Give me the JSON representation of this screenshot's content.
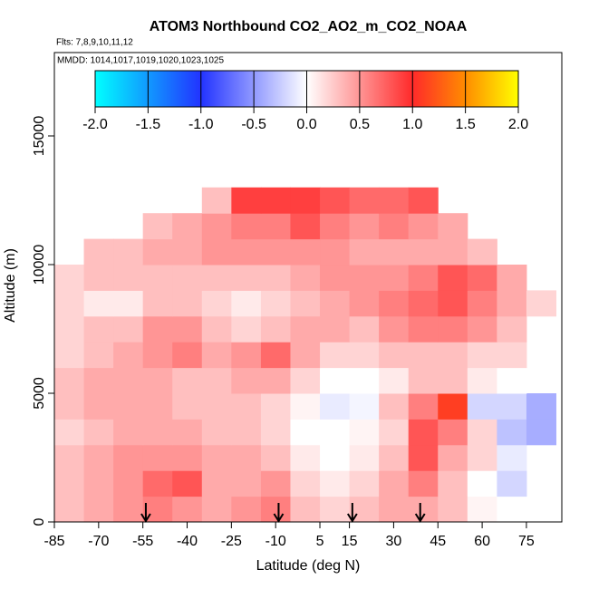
{
  "chart_data": {
    "type": "heatmap",
    "title": "ATOM3 Northbound CO2_AO2_m_CO2_NOAA",
    "subtitle": "Flts: 7,8,9,10,11,12",
    "annotation": "MMDD: 1014,1017,1019,1020,1023,1025",
    "x_label": "Latitude (deg N)",
    "y_label": "Altitude (m)",
    "x": [
      -80,
      -70,
      -60,
      -50,
      -40,
      -30,
      -20,
      -10,
      0,
      10,
      20,
      30,
      40,
      50,
      60,
      70,
      80
    ],
    "y": [
      500,
      1500,
      2500,
      3500,
      4500,
      5500,
      6500,
      7500,
      8500,
      9500,
      10500,
      11500,
      12500
    ],
    "values": [
      [
        0.3,
        0.4,
        0.5,
        0.6,
        0.5,
        0.4,
        0.5,
        0.6,
        0.3,
        0.2,
        0.3,
        0.4,
        0.4,
        0.3,
        0.05,
        0.0,
        0.0
      ],
      [
        0.3,
        0.4,
        0.5,
        0.7,
        0.8,
        0.4,
        0.4,
        0.5,
        0.2,
        0.1,
        0.2,
        0.4,
        0.6,
        0.3,
        0.0,
        -0.2,
        null
      ],
      [
        0.3,
        0.4,
        0.5,
        0.5,
        0.5,
        0.4,
        0.4,
        0.3,
        0.1,
        0.0,
        0.1,
        0.3,
        0.8,
        0.4,
        0.2,
        -0.1,
        null
      ],
      [
        0.2,
        0.3,
        0.4,
        0.4,
        0.4,
        0.3,
        0.3,
        0.2,
        0.0,
        0.0,
        0.05,
        0.2,
        0.8,
        0.6,
        0.2,
        -0.3,
        -0.4
      ],
      [
        0.3,
        0.4,
        0.4,
        0.4,
        0.3,
        0.3,
        0.3,
        0.2,
        0.05,
        -0.1,
        -0.05,
        0.3,
        0.6,
        1.1,
        -0.2,
        -0.2,
        -0.4
      ],
      [
        0.3,
        0.4,
        0.4,
        0.4,
        0.3,
        0.3,
        0.4,
        0.4,
        0.2,
        0.0,
        0.0,
        0.1,
        0.3,
        0.3,
        0.1,
        0.0,
        null
      ],
      [
        0.2,
        0.3,
        0.4,
        0.5,
        0.6,
        0.4,
        0.5,
        0.7,
        0.4,
        0.2,
        0.2,
        0.3,
        0.3,
        0.3,
        0.2,
        0.2,
        null
      ],
      [
        0.2,
        0.3,
        0.3,
        0.5,
        0.5,
        0.3,
        0.2,
        0.3,
        0.4,
        0.4,
        0.3,
        0.5,
        0.6,
        0.6,
        0.5,
        0.3,
        null
      ],
      [
        0.2,
        0.1,
        0.1,
        0.3,
        0.3,
        0.2,
        0.1,
        0.2,
        0.3,
        0.4,
        0.5,
        0.6,
        0.7,
        0.8,
        0.6,
        0.4,
        0.2
      ],
      [
        0.2,
        0.3,
        0.3,
        0.3,
        0.3,
        0.3,
        0.3,
        0.3,
        0.4,
        0.5,
        0.5,
        0.5,
        0.6,
        0.8,
        0.7,
        0.4,
        null
      ],
      [
        null,
        0.3,
        0.3,
        0.4,
        0.4,
        0.5,
        0.5,
        0.5,
        0.5,
        0.5,
        0.4,
        0.4,
        0.4,
        0.4,
        0.3,
        null,
        null
      ],
      [
        null,
        null,
        null,
        0.3,
        0.4,
        0.5,
        0.6,
        0.6,
        0.8,
        0.6,
        0.5,
        0.6,
        0.5,
        0.4,
        null,
        null,
        null
      ],
      [
        null,
        null,
        null,
        null,
        null,
        0.3,
        0.9,
        0.9,
        0.9,
        0.8,
        0.7,
        0.7,
        0.8,
        null,
        null,
        null,
        null
      ]
    ],
    "cell_width": 10,
    "cell_height": 1000,
    "arrow_latitudes": [
      -54,
      -9,
      16,
      39
    ],
    "xlim": [
      -85,
      87
    ],
    "xticks": [
      -85,
      -70,
      -55,
      -40,
      -25,
      -10,
      5,
      15,
      30,
      45,
      60,
      75
    ],
    "ylim": [
      0,
      18240
    ],
    "yticks": [
      0,
      5000,
      10000,
      15000
    ],
    "color_stops": [
      [
        -2,
        "#00ffff"
      ],
      [
        -1,
        "#2233ff"
      ],
      [
        0,
        "#ffffff"
      ],
      [
        1,
        "#ff2a2a"
      ],
      [
        1.5,
        "#ff8c00"
      ],
      [
        2,
        "#ffff00"
      ]
    ],
    "colorbar_lim": [
      -2,
      2
    ],
    "colorbar_ticks": [
      {
        "value": -2,
        "label": "-2.0"
      },
      {
        "value": -1.5,
        "label": "-1.5"
      },
      {
        "value": -1,
        "label": "-1.0"
      },
      {
        "value": -0.5,
        "label": "-0.5"
      },
      {
        "value": 0,
        "label": "0.0"
      },
      {
        "value": 0.5,
        "label": "0.5"
      },
      {
        "value": 1,
        "label": "1.0"
      },
      {
        "value": 1.5,
        "label": "1.5"
      },
      {
        "value": 2,
        "label": "2.0"
      }
    ]
  }
}
